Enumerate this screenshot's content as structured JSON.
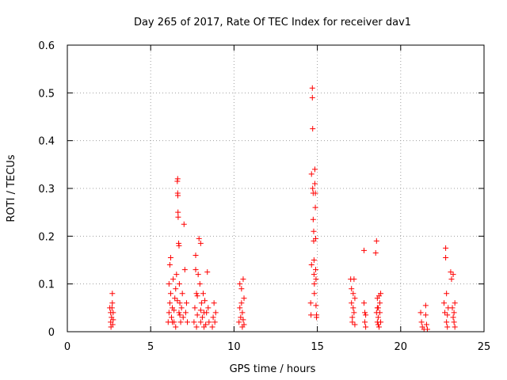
{
  "chart_data": {
    "type": "scatter",
    "title": "Day 265 of 2017, Rate Of TEC Index for receiver dav1",
    "xlabel": "GPS time / hours",
    "ylabel": "ROTI / TECUs",
    "xlim": [
      0,
      25
    ],
    "ylim": [
      0,
      0.6
    ],
    "xticks": [
      0,
      5,
      10,
      15,
      20,
      25
    ],
    "xtick_labels": [
      "0",
      "5",
      "10",
      "15",
      "20",
      "25"
    ],
    "yticks": [
      0,
      0.1,
      0.2,
      0.3,
      0.4,
      0.5,
      0.6
    ],
    "ytick_labels": [
      "0",
      "0.1",
      "0.2",
      "0.3",
      "0.4",
      "0.5",
      "0.6"
    ],
    "grid": true,
    "marker": "+",
    "color": "#ff0000",
    "series": [
      {
        "name": "ROTI",
        "points": [
          [
            2.55,
            0.05
          ],
          [
            2.6,
            0.04
          ],
          [
            2.6,
            0.02
          ],
          [
            2.62,
            0.01
          ],
          [
            2.65,
            0.03
          ],
          [
            2.68,
            0.05
          ],
          [
            2.7,
            0.08
          ],
          [
            2.7,
            0.06
          ],
          [
            2.72,
            0.015
          ],
          [
            2.75,
            0.025
          ],
          [
            2.75,
            0.04
          ],
          [
            6.05,
            0.02
          ],
          [
            6.1,
            0.04
          ],
          [
            6.1,
            0.1
          ],
          [
            6.15,
            0.06
          ],
          [
            6.15,
            0.14
          ],
          [
            6.2,
            0.155
          ],
          [
            6.2,
            0.08
          ],
          [
            6.25,
            0.03
          ],
          [
            6.3,
            0.05
          ],
          [
            6.35,
            0.11
          ],
          [
            6.4,
            0.02
          ],
          [
            6.45,
            0.07
          ],
          [
            6.5,
            0.09
          ],
          [
            6.55,
            0.12
          ],
          [
            6.6,
            0.315
          ],
          [
            6.62,
            0.32
          ],
          [
            6.62,
            0.29
          ],
          [
            6.63,
            0.285
          ],
          [
            6.64,
            0.25
          ],
          [
            6.65,
            0.24
          ],
          [
            6.68,
            0.185
          ],
          [
            6.7,
            0.18
          ],
          [
            6.7,
            0.04
          ],
          [
            6.72,
            0.1
          ],
          [
            6.75,
            0.06
          ],
          [
            6.8,
            0.02
          ],
          [
            6.85,
            0.05
          ],
          [
            6.9,
            0.08
          ],
          [
            6.95,
            0.03
          ],
          [
            7.0,
            0.225
          ],
          [
            7.05,
            0.13
          ],
          [
            7.1,
            0.04
          ],
          [
            7.15,
            0.06
          ],
          [
            7.2,
            0.02
          ],
          [
            6.3,
            0.02
          ],
          [
            6.5,
            0.01
          ],
          [
            6.75,
            0.035
          ],
          [
            6.6,
            0.065
          ],
          [
            6.4,
            0.045
          ],
          [
            7.6,
            0.02
          ],
          [
            7.65,
            0.05
          ],
          [
            7.7,
            0.13
          ],
          [
            7.7,
            0.16
          ],
          [
            7.75,
            0.08
          ],
          [
            7.8,
            0.035
          ],
          [
            7.85,
            0.12
          ],
          [
            7.9,
            0.195
          ],
          [
            7.95,
            0.1
          ],
          [
            8.0,
            0.185
          ],
          [
            8.0,
            0.02
          ],
          [
            8.05,
            0.06
          ],
          [
            8.1,
            0.03
          ],
          [
            8.15,
            0.08
          ],
          [
            8.2,
            0.04
          ],
          [
            8.25,
            0.065
          ],
          [
            8.3,
            0.015
          ],
          [
            8.35,
            0.04
          ],
          [
            8.4,
            0.125
          ],
          [
            8.45,
            0.05
          ],
          [
            8.5,
            0.02
          ],
          [
            8.7,
            0.01
          ],
          [
            8.75,
            0.03
          ],
          [
            8.8,
            0.06
          ],
          [
            8.85,
            0.02
          ],
          [
            8.9,
            0.04
          ],
          [
            7.8,
            0.075
          ],
          [
            7.75,
            0.01
          ],
          [
            8.2,
            0.01
          ],
          [
            8.0,
            0.045
          ],
          [
            10.3,
            0.02
          ],
          [
            10.35,
            0.05
          ],
          [
            10.35,
            0.1
          ],
          [
            10.4,
            0.03
          ],
          [
            10.45,
            0.09
          ],
          [
            10.45,
            0.06
          ],
          [
            10.5,
            0.01
          ],
          [
            10.5,
            0.04
          ],
          [
            10.55,
            0.11
          ],
          [
            10.55,
            0.025
          ],
          [
            10.6,
            0.07
          ],
          [
            10.6,
            0.015
          ],
          [
            14.6,
            0.06
          ],
          [
            14.62,
            0.035
          ],
          [
            14.65,
            0.14
          ],
          [
            14.65,
            0.33
          ],
          [
            14.7,
            0.51
          ],
          [
            14.7,
            0.49
          ],
          [
            14.72,
            0.425
          ],
          [
            14.72,
            0.3
          ],
          [
            14.75,
            0.29
          ],
          [
            14.75,
            0.235
          ],
          [
            14.78,
            0.21
          ],
          [
            14.78,
            0.19
          ],
          [
            14.8,
            0.15
          ],
          [
            14.8,
            0.12
          ],
          [
            14.82,
            0.1
          ],
          [
            14.82,
            0.08
          ],
          [
            14.85,
            0.34
          ],
          [
            14.85,
            0.31
          ],
          [
            14.88,
            0.29
          ],
          [
            14.88,
            0.26
          ],
          [
            14.9,
            0.195
          ],
          [
            14.9,
            0.13
          ],
          [
            14.92,
            0.11
          ],
          [
            14.92,
            0.055
          ],
          [
            14.95,
            0.035
          ],
          [
            14.95,
            0.03
          ],
          [
            17.0,
            0.11
          ],
          [
            17.05,
            0.09
          ],
          [
            17.05,
            0.06
          ],
          [
            17.1,
            0.03
          ],
          [
            17.1,
            0.02
          ],
          [
            17.15,
            0.05
          ],
          [
            17.15,
            0.08
          ],
          [
            17.2,
            0.11
          ],
          [
            17.2,
            0.04
          ],
          [
            17.25,
            0.07
          ],
          [
            17.25,
            0.015
          ],
          [
            17.8,
            0.17
          ],
          [
            17.8,
            0.06
          ],
          [
            17.85,
            0.04
          ],
          [
            17.85,
            0.02
          ],
          [
            17.9,
            0.01
          ],
          [
            17.9,
            0.035
          ],
          [
            18.5,
            0.165
          ],
          [
            18.55,
            0.19
          ],
          [
            18.6,
            0.07
          ],
          [
            18.6,
            0.02
          ],
          [
            18.65,
            0.05
          ],
          [
            18.65,
            0.03
          ],
          [
            18.7,
            0.075
          ],
          [
            18.7,
            0.01
          ],
          [
            18.75,
            0.06
          ],
          [
            18.75,
            0.04
          ],
          [
            18.8,
            0.02
          ],
          [
            18.8,
            0.08
          ],
          [
            18.55,
            0.04
          ],
          [
            18.6,
            0.05
          ],
          [
            18.65,
            0.015
          ],
          [
            21.2,
            0.04
          ],
          [
            21.25,
            0.02
          ],
          [
            21.3,
            0.01
          ],
          [
            21.4,
            0.005
          ],
          [
            21.5,
            0.035
          ],
          [
            21.5,
            0.055
          ],
          [
            21.55,
            0.015
          ],
          [
            21.6,
            0.005
          ],
          [
            22.6,
            0.06
          ],
          [
            22.65,
            0.04
          ],
          [
            22.7,
            0.175
          ],
          [
            22.7,
            0.155
          ],
          [
            22.75,
            0.08
          ],
          [
            22.75,
            0.02
          ],
          [
            22.8,
            0.035
          ],
          [
            22.8,
            0.01
          ],
          [
            22.85,
            0.05
          ],
          [
            23.0,
            0.125
          ],
          [
            23.05,
            0.11
          ],
          [
            23.1,
            0.05
          ],
          [
            23.15,
            0.12
          ],
          [
            23.15,
            0.03
          ],
          [
            23.2,
            0.04
          ],
          [
            23.2,
            0.02
          ],
          [
            23.25,
            0.06
          ],
          [
            23.25,
            0.01
          ]
        ]
      }
    ]
  }
}
